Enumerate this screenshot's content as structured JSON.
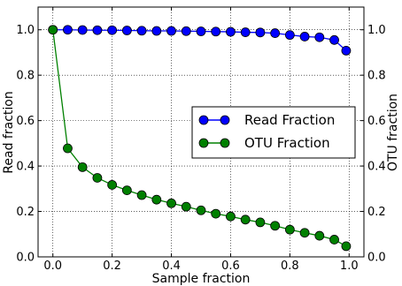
{
  "chart_data": {
    "type": "line",
    "title": "",
    "xlabel": "Sample fraction",
    "ylabel": "Read fraction",
    "ylabel_right": "OTU fraction",
    "xlim": [
      -0.05,
      1.05
    ],
    "ylim": [
      0.0,
      1.1
    ],
    "y2lim": [
      0.0,
      1.1
    ],
    "xticks": [
      "0.0",
      "0.2",
      "0.4",
      "0.6",
      "0.8",
      "1.0"
    ],
    "yticks": [
      "0.0",
      "0.2",
      "0.4",
      "0.6",
      "0.8",
      "1.0"
    ],
    "y2ticks": [
      "0.0",
      "0.2",
      "0.4",
      "0.6",
      "0.8",
      "1.0"
    ],
    "grid": true,
    "legend_position": "right",
    "x": [
      0.0,
      0.05,
      0.1,
      0.15,
      0.2,
      0.25,
      0.3,
      0.35,
      0.4,
      0.45,
      0.5,
      0.55,
      0.6,
      0.65,
      0.7,
      0.75,
      0.8,
      0.85,
      0.9,
      0.95,
      0.99
    ],
    "series": [
      {
        "name": "Read Fraction",
        "axis": "left",
        "color": "#0000ff",
        "values": [
          1.0,
          1.0,
          0.999,
          0.998,
          0.998,
          0.997,
          0.996,
          0.995,
          0.995,
          0.994,
          0.993,
          0.992,
          0.991,
          0.989,
          0.988,
          0.985,
          0.977,
          0.97,
          0.967,
          0.955,
          0.908
        ]
      },
      {
        "name": "OTU Fraction",
        "axis": "right",
        "color": "#008000",
        "values": [
          1.0,
          0.478,
          0.395,
          0.348,
          0.317,
          0.293,
          0.272,
          0.252,
          0.236,
          0.221,
          0.205,
          0.19,
          0.178,
          0.164,
          0.152,
          0.137,
          0.12,
          0.106,
          0.093,
          0.076,
          0.047
        ]
      }
    ]
  }
}
